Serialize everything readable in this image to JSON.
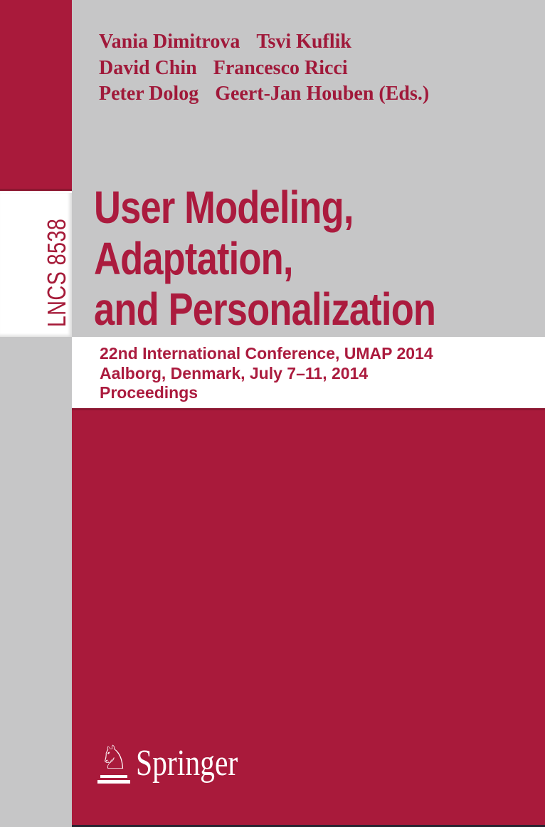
{
  "spine": {
    "series_volume": "LNCS 8538"
  },
  "authors": {
    "lines": [
      {
        "left": "Vania Dimitrova",
        "right": "Tsvi Kuflik"
      },
      {
        "left": "David Chin",
        "right": "Francesco Ricci"
      },
      {
        "left": "Peter Dolog",
        "right": "Geert-Jan Houben (Eds.)"
      }
    ]
  },
  "title": {
    "lines": [
      "User Modeling,",
      "Adaptation,",
      "and Personalization"
    ]
  },
  "subtitle": {
    "lines": [
      "22nd International Conference, UMAP 2014",
      "Aalborg, Denmark, July 7–11, 2014",
      "Proceedings"
    ]
  },
  "publisher": {
    "name": "Springer",
    "logo_icon": "springer-horse-knight",
    "logo_glyph": "♘"
  },
  "colors": {
    "cover_red": "#a91a3b",
    "cover_red_dark_edge": "#8c1630",
    "cover_gray": "#c6c6c7",
    "band_white": "#ffffff",
    "text_red": "#ab1b3e",
    "author_red": "#a0193a",
    "bottom_edge_dark": "#2a2331"
  }
}
